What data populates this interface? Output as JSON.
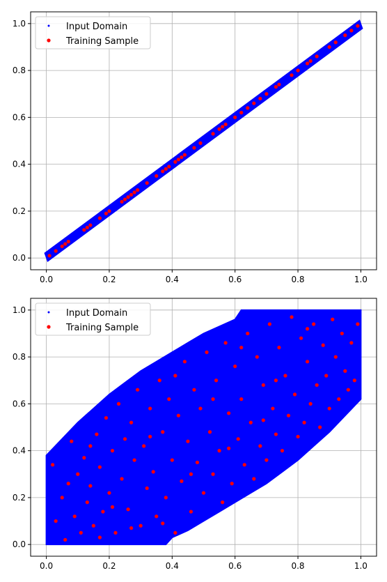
{
  "chart_data": [
    {
      "type": "scatter",
      "xlim": [
        -0.05,
        1.05
      ],
      "ylim": [
        -0.05,
        1.05
      ],
      "xticks": [
        "0.0",
        "0.2",
        "0.4",
        "0.6",
        "0.8",
        "1.0"
      ],
      "yticks": [
        "0.0",
        "0.2",
        "0.4",
        "0.6",
        "0.8",
        "1.0"
      ],
      "grid": true,
      "legend_position": "top-left",
      "series": [
        {
          "name": "Input Domain",
          "color": "#0000ff",
          "marker": "small-point",
          "region": "diagonal band y = x ± 0.015"
        },
        {
          "name": "Training Sample",
          "color": "#ff0000",
          "marker": "circle",
          "points": [
            [
              0.01,
              0.01
            ],
            [
              0.03,
              0.03
            ],
            [
              0.05,
              0.05
            ],
            [
              0.06,
              0.06
            ],
            [
              0.07,
              0.07
            ],
            [
              0.12,
              0.12
            ],
            [
              0.13,
              0.13
            ],
            [
              0.14,
              0.14
            ],
            [
              0.17,
              0.17
            ],
            [
              0.19,
              0.19
            ],
            [
              0.2,
              0.2
            ],
            [
              0.24,
              0.24
            ],
            [
              0.25,
              0.25
            ],
            [
              0.26,
              0.26
            ],
            [
              0.27,
              0.27
            ],
            [
              0.28,
              0.28
            ],
            [
              0.29,
              0.29
            ],
            [
              0.32,
              0.32
            ],
            [
              0.35,
              0.35
            ],
            [
              0.37,
              0.37
            ],
            [
              0.38,
              0.38
            ],
            [
              0.39,
              0.39
            ],
            [
              0.41,
              0.41
            ],
            [
              0.42,
              0.42
            ],
            [
              0.43,
              0.43
            ],
            [
              0.44,
              0.44
            ],
            [
              0.47,
              0.47
            ],
            [
              0.49,
              0.49
            ],
            [
              0.53,
              0.53
            ],
            [
              0.55,
              0.55
            ],
            [
              0.56,
              0.56
            ],
            [
              0.57,
              0.57
            ],
            [
              0.6,
              0.6
            ],
            [
              0.62,
              0.62
            ],
            [
              0.64,
              0.64
            ],
            [
              0.66,
              0.66
            ],
            [
              0.68,
              0.68
            ],
            [
              0.7,
              0.7
            ],
            [
              0.73,
              0.73
            ],
            [
              0.74,
              0.74
            ],
            [
              0.78,
              0.78
            ],
            [
              0.8,
              0.8
            ],
            [
              0.83,
              0.83
            ],
            [
              0.84,
              0.84
            ],
            [
              0.86,
              0.86
            ],
            [
              0.9,
              0.9
            ],
            [
              0.92,
              0.92
            ],
            [
              0.95,
              0.95
            ],
            [
              0.97,
              0.97
            ],
            [
              0.99,
              0.99
            ]
          ]
        }
      ]
    },
    {
      "type": "scatter",
      "xlim": [
        -0.05,
        1.05
      ],
      "ylim": [
        -0.05,
        1.05
      ],
      "xticks": [
        "0.0",
        "0.2",
        "0.4",
        "0.6",
        "0.8",
        "1.0"
      ],
      "yticks": [
        "0.0",
        "0.2",
        "0.4",
        "0.6",
        "0.8",
        "1.0"
      ],
      "grid": true,
      "legend_position": "top-left",
      "series": [
        {
          "name": "Input Domain",
          "color": "#0000ff",
          "marker": "small-point",
          "region": [
            [
              0.0,
              0.0
            ],
            [
              0.0,
              0.38
            ],
            [
              0.05,
              0.45
            ],
            [
              0.1,
              0.52
            ],
            [
              0.15,
              0.58
            ],
            [
              0.2,
              0.64
            ],
            [
              0.25,
              0.69
            ],
            [
              0.3,
              0.74
            ],
            [
              0.35,
              0.78
            ],
            [
              0.4,
              0.82
            ],
            [
              0.45,
              0.86
            ],
            [
              0.5,
              0.9
            ],
            [
              0.55,
              0.93
            ],
            [
              0.6,
              0.96
            ],
            [
              0.62,
              1.0
            ],
            [
              1.0,
              1.0
            ],
            [
              1.0,
              0.62
            ],
            [
              0.95,
              0.55
            ],
            [
              0.9,
              0.48
            ],
            [
              0.85,
              0.42
            ],
            [
              0.8,
              0.36
            ],
            [
              0.75,
              0.31
            ],
            [
              0.7,
              0.26
            ],
            [
              0.65,
              0.22
            ],
            [
              0.6,
              0.18
            ],
            [
              0.55,
              0.14
            ],
            [
              0.5,
              0.1
            ],
            [
              0.45,
              0.06
            ],
            [
              0.4,
              0.03
            ],
            [
              0.38,
              0.0
            ]
          ]
        },
        {
          "name": "Training Sample",
          "color": "#ff0000",
          "marker": "circle",
          "points": [
            [
              0.02,
              0.34
            ],
            [
              0.03,
              0.1
            ],
            [
              0.05,
              0.2
            ],
            [
              0.06,
              0.02
            ],
            [
              0.08,
              0.44
            ],
            [
              0.09,
              0.12
            ],
            [
              0.1,
              0.3
            ],
            [
              0.11,
              0.05
            ],
            [
              0.12,
              0.37
            ],
            [
              0.13,
              0.18
            ],
            [
              0.14,
              0.25
            ],
            [
              0.15,
              0.08
            ],
            [
              0.16,
              0.47
            ],
            [
              0.17,
              0.33
            ],
            [
              0.18,
              0.14
            ],
            [
              0.19,
              0.54
            ],
            [
              0.2,
              0.22
            ],
            [
              0.21,
              0.4
            ],
            [
              0.22,
              0.05
            ],
            [
              0.23,
              0.6
            ],
            [
              0.24,
              0.28
            ],
            [
              0.25,
              0.45
            ],
            [
              0.26,
              0.15
            ],
            [
              0.27,
              0.52
            ],
            [
              0.28,
              0.36
            ],
            [
              0.29,
              0.66
            ],
            [
              0.3,
              0.08
            ],
            [
              0.31,
              0.42
            ],
            [
              0.32,
              0.24
            ],
            [
              0.33,
              0.58
            ],
            [
              0.34,
              0.31
            ],
            [
              0.35,
              0.12
            ],
            [
              0.36,
              0.7
            ],
            [
              0.37,
              0.48
            ],
            [
              0.38,
              0.2
            ],
            [
              0.39,
              0.62
            ],
            [
              0.4,
              0.36
            ],
            [
              0.41,
              0.05
            ],
            [
              0.42,
              0.55
            ],
            [
              0.43,
              0.27
            ],
            [
              0.44,
              0.78
            ],
            [
              0.45,
              0.44
            ],
            [
              0.46,
              0.14
            ],
            [
              0.47,
              0.66
            ],
            [
              0.48,
              0.35
            ],
            [
              0.49,
              0.58
            ],
            [
              0.5,
              0.22
            ],
            [
              0.51,
              0.82
            ],
            [
              0.52,
              0.48
            ],
            [
              0.53,
              0.3
            ],
            [
              0.54,
              0.7
            ],
            [
              0.55,
              0.4
            ],
            [
              0.56,
              0.18
            ],
            [
              0.57,
              0.86
            ],
            [
              0.58,
              0.56
            ],
            [
              0.59,
              0.26
            ],
            [
              0.6,
              0.76
            ],
            [
              0.61,
              0.45
            ],
            [
              0.62,
              0.62
            ],
            [
              0.63,
              0.34
            ],
            [
              0.64,
              0.9
            ],
            [
              0.65,
              0.52
            ],
            [
              0.66,
              0.28
            ],
            [
              0.67,
              0.8
            ],
            [
              0.68,
              0.42
            ],
            [
              0.69,
              0.68
            ],
            [
              0.7,
              0.36
            ],
            [
              0.71,
              0.94
            ],
            [
              0.72,
              0.58
            ],
            [
              0.73,
              0.47
            ],
            [
              0.74,
              0.84
            ],
            [
              0.75,
              0.4
            ],
            [
              0.76,
              0.72
            ],
            [
              0.77,
              0.55
            ],
            [
              0.78,
              0.97
            ],
            [
              0.79,
              0.64
            ],
            [
              0.8,
              0.46
            ],
            [
              0.81,
              0.88
            ],
            [
              0.82,
              0.52
            ],
            [
              0.83,
              0.78
            ],
            [
              0.84,
              0.6
            ],
            [
              0.85,
              0.94
            ],
            [
              0.86,
              0.68
            ],
            [
              0.87,
              0.5
            ],
            [
              0.88,
              0.85
            ],
            [
              0.89,
              0.72
            ],
            [
              0.9,
              0.58
            ],
            [
              0.91,
              0.96
            ],
            [
              0.92,
              0.8
            ],
            [
              0.93,
              0.62
            ],
            [
              0.94,
              0.9
            ],
            [
              0.95,
              0.74
            ],
            [
              0.96,
              0.66
            ],
            [
              0.97,
              0.86
            ],
            [
              0.98,
              0.7
            ],
            [
              0.99,
              0.94
            ],
            [
              0.07,
              0.26
            ],
            [
              0.14,
              0.42
            ],
            [
              0.21,
              0.16
            ],
            [
              0.33,
              0.46
            ],
            [
              0.41,
              0.72
            ],
            [
              0.53,
              0.62
            ],
            [
              0.62,
              0.84
            ],
            [
              0.73,
              0.7
            ],
            [
              0.83,
              0.92
            ],
            [
              0.46,
              0.3
            ],
            [
              0.58,
              0.41
            ],
            [
              0.69,
              0.53
            ],
            [
              0.37,
              0.09
            ],
            [
              0.27,
              0.07
            ],
            [
              0.17,
              0.03
            ]
          ]
        }
      ]
    }
  ]
}
